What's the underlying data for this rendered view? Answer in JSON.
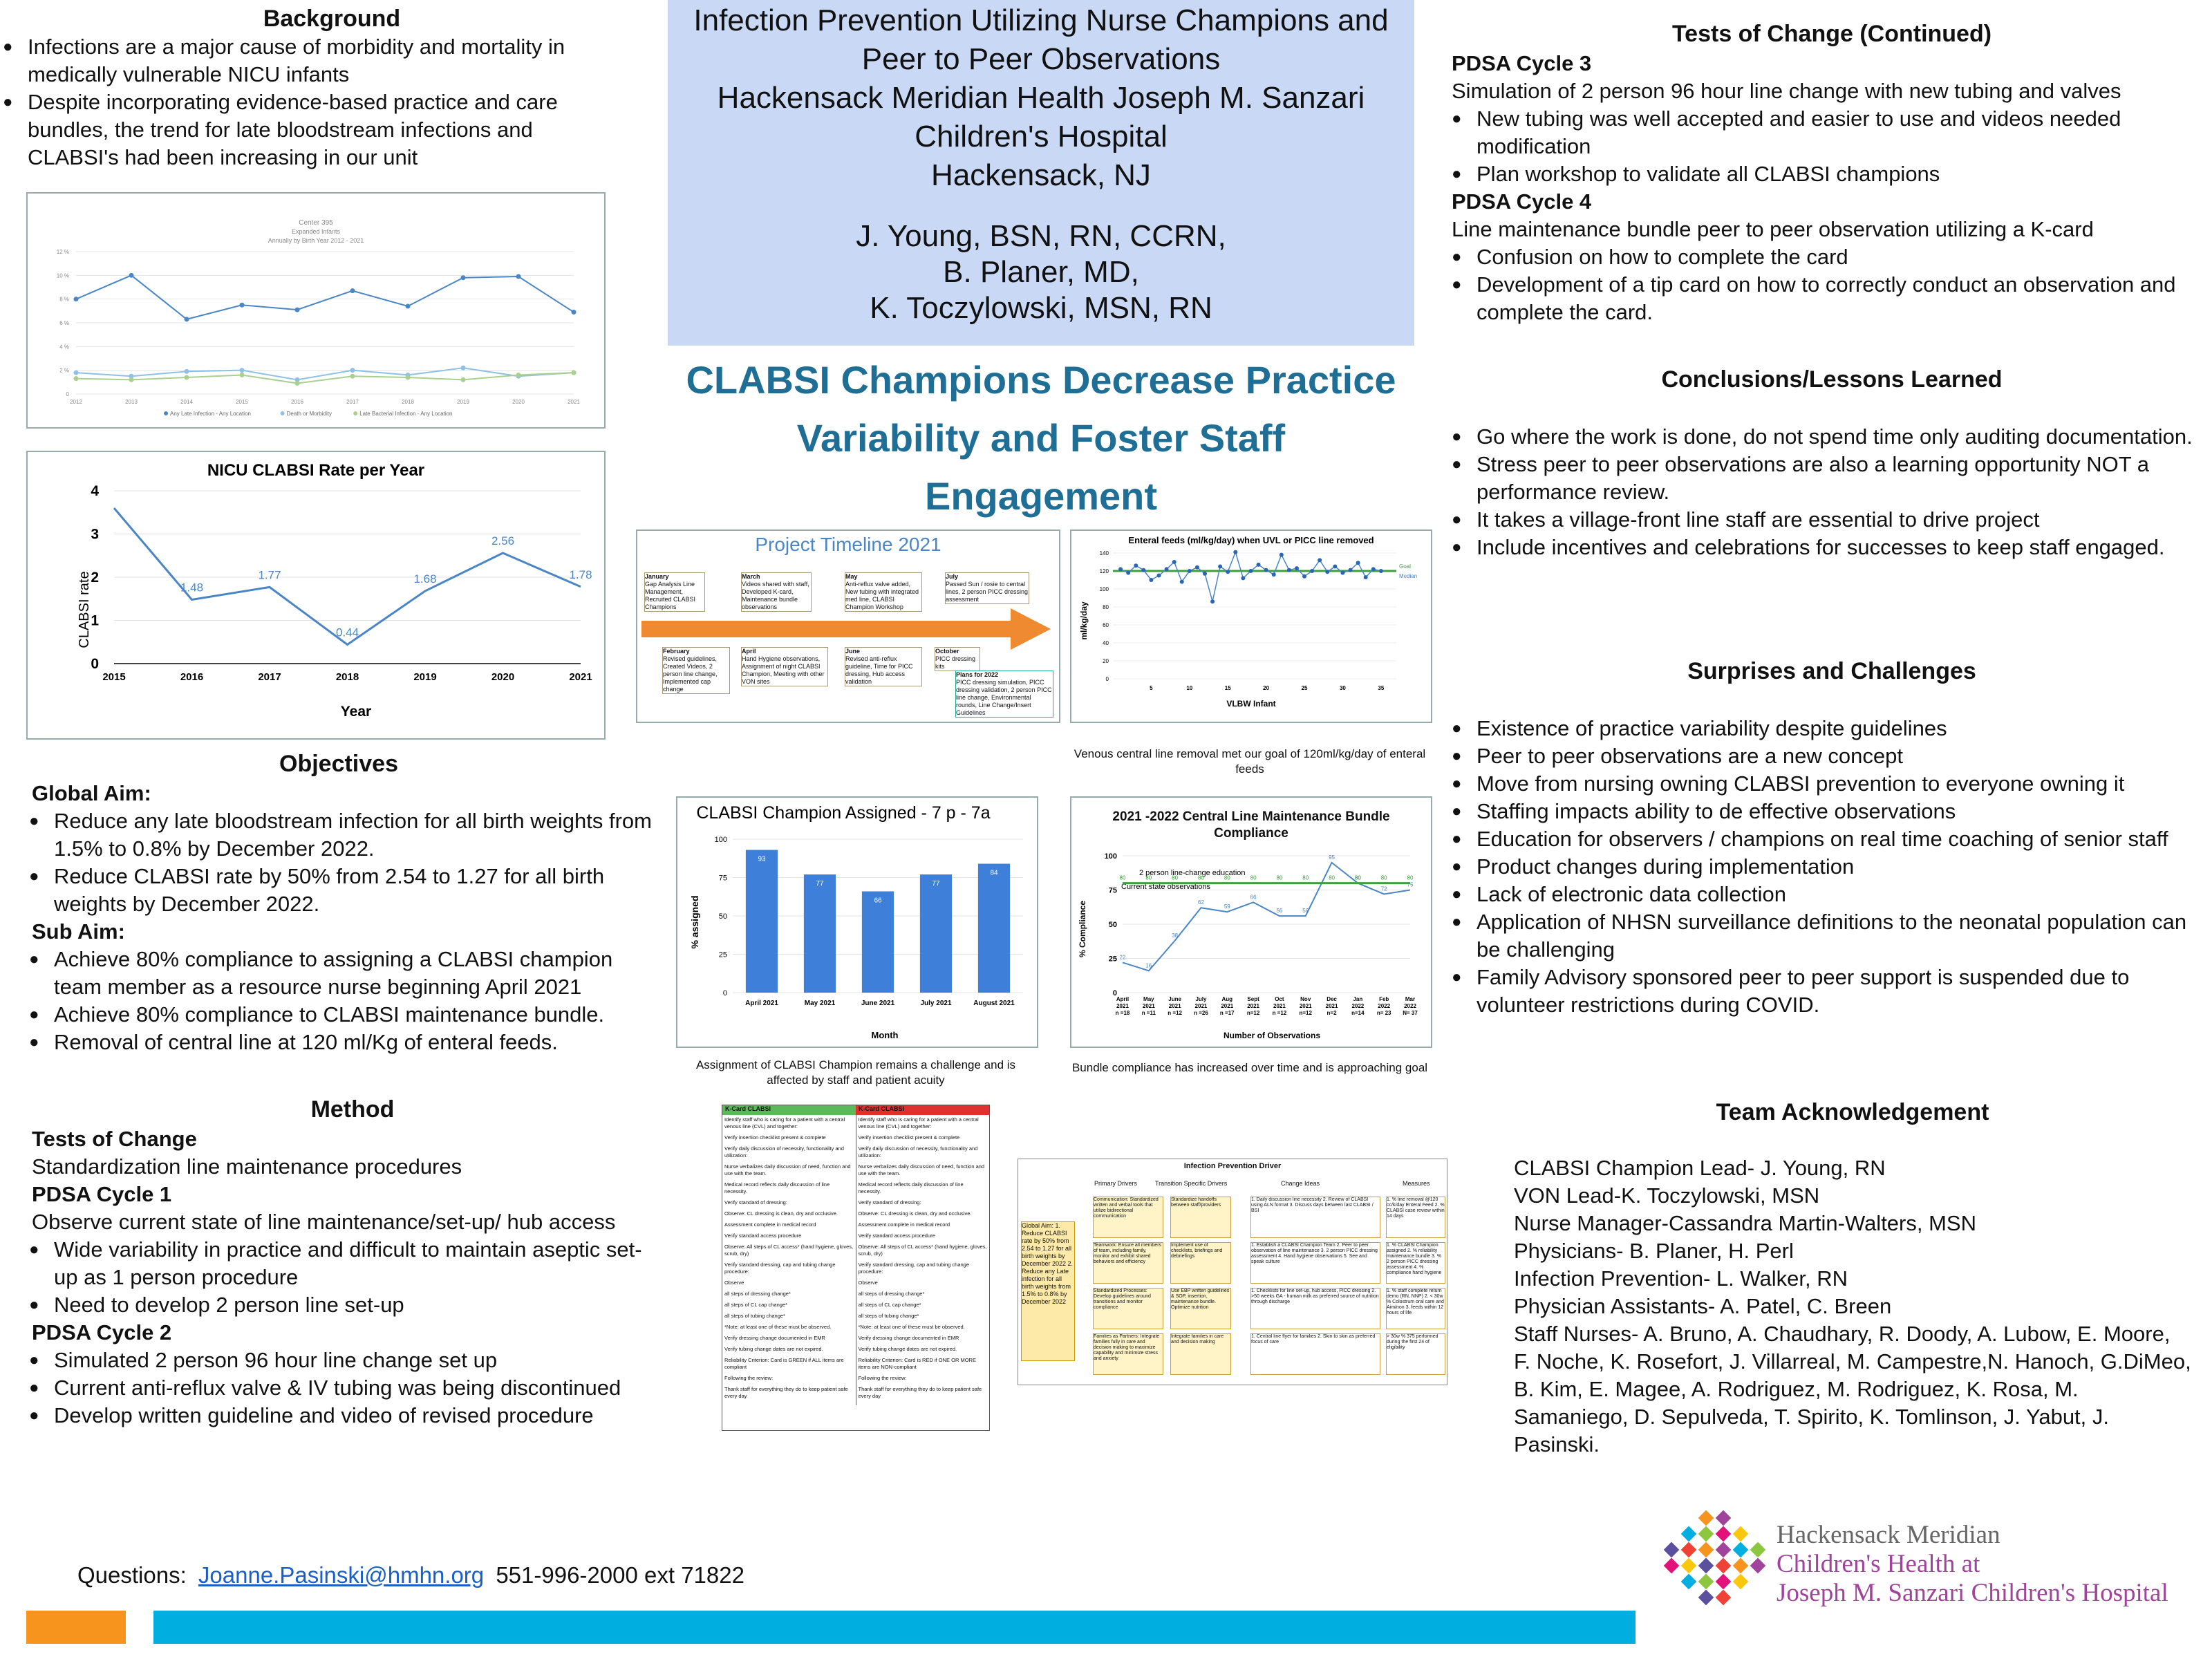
{
  "background": {
    "title": "Background",
    "bullets": [
      "Infections are a major cause of morbidity and mortality in medically vulnerable NICU infants",
      "Despite incorporating evidence-based practice and care bundles, the trend for late bloodstream infections and CLABSI's had been increasing in our unit"
    ]
  },
  "header": {
    "title_lines": [
      "Infection Prevention Utilizing Nurse Champions and",
      "Peer to Peer Observations",
      "Hackensack Meridian Health Joseph M. Sanzari",
      "Children's Hospital",
      "Hackensack, NJ"
    ],
    "authors": [
      "J. Young, BSN, RN, CCRN,",
      "B. Planer, MD,",
      "K. Toczylowski, MSN, RN"
    ],
    "bg_color": "#c9d8f5"
  },
  "banner": {
    "lines": [
      "CLABSI Champions Decrease Practice",
      "Variability and Foster Staff",
      "Engagement"
    ],
    "color": "#1f6e96"
  },
  "chart_data": [
    {
      "type": "line",
      "title": "Center 395",
      "subtitle": "Expanded Infants",
      "subtitle2": "Annually by Birth Year 2012 - 2021",
      "categories": [
        "2012",
        "2013",
        "2014",
        "2015",
        "2016",
        "2017",
        "2018",
        "2019",
        "2020",
        "2021"
      ],
      "yticks": [
        "0",
        "2 %",
        "4 %",
        "6 %",
        "8 %",
        "10 %",
        "12 %"
      ],
      "ylim": [
        0,
        12
      ],
      "series": [
        {
          "name": "Any Late Infection - Any Location",
          "values": [
            8.0,
            10.0,
            6.3,
            7.5,
            7.1,
            8.7,
            7.4,
            9.8,
            9.9,
            6.9
          ],
          "color": "#4a86c5"
        },
        {
          "name": "Death or Morbidity",
          "values": [
            1.8,
            1.5,
            1.9,
            2.0,
            1.2,
            2.0,
            1.6,
            2.2,
            1.5,
            1.8
          ],
          "color": "#8fc1e6"
        },
        {
          "name": "Late Bacterial Infection - Any Location",
          "values": [
            1.3,
            1.2,
            1.4,
            1.6,
            0.9,
            1.5,
            1.4,
            1.2,
            1.6,
            1.8
          ],
          "color": "#a9d08e"
        }
      ],
      "legend_position": "bottom"
    },
    {
      "type": "line",
      "title": "NICU CLABSI Rate per Year",
      "xlabel": "Year",
      "ylabel": "CLABSI rate",
      "categories": [
        "2015",
        "2016",
        "2017",
        "2018",
        "2019",
        "2020",
        "2021"
      ],
      "values": [
        3.6,
        1.48,
        1.77,
        0.44,
        1.68,
        2.56,
        1.78
      ],
      "data_labels": [
        "",
        "1.48",
        "1.77",
        "0.44",
        "1.68",
        "2.56",
        "1.78"
      ],
      "yticks": [
        "0",
        "1",
        "2",
        "3",
        "4"
      ],
      "ylim": [
        0,
        4
      ],
      "grid": true
    },
    {
      "type": "scatter",
      "title": "Enteral feeds (ml/kg/day) when UVL or PICC line removed",
      "xlabel": "VLBW Infant",
      "ylabel": "ml/kg/day",
      "xticks": [
        "5",
        "10",
        "15",
        "20",
        "25",
        "30",
        "35"
      ],
      "yticks": [
        "0",
        "20",
        "40",
        "60",
        "80",
        "100",
        "120",
        "140"
      ],
      "ylim": [
        0,
        140
      ],
      "xlim": [
        0,
        37
      ],
      "goal": 120,
      "goal_label": "Goal",
      "median_label": "Median",
      "values": [
        122,
        118,
        126,
        121,
        110,
        115,
        122,
        130,
        108,
        120,
        124,
        117,
        86,
        125,
        119,
        141,
        112,
        120,
        127,
        121,
        116,
        138,
        121,
        123,
        114,
        120,
        132,
        119,
        125,
        118,
        121,
        129,
        113,
        122,
        120
      ]
    },
    {
      "type": "bar",
      "title": "CLABSI Champion Assigned - 7 p - 7a",
      "xlabel": "Month",
      "ylabel": "% assigned",
      "categories": [
        "April 2021",
        "May 2021",
        "June 2021",
        "July 2021",
        "August 2021"
      ],
      "values": [
        93,
        77,
        66,
        77,
        84
      ],
      "yticks": [
        "0",
        "25",
        "50",
        "75",
        "100"
      ],
      "ylim": [
        0,
        100
      ],
      "color": "#3d7fd9"
    },
    {
      "type": "line",
      "title": "2021 -2022 Central Line Maintenance Bundle Compliance",
      "xlabel": "Number of Observations",
      "ylabel": "% Compliance",
      "categories": [
        "April 2021 n =18",
        "May 2021 n =11",
        "June 2021 n =12",
        "July 2021 n =26",
        "Aug 2021 n =17",
        "Sept 2021 n=12",
        "Oct 2021 n =12",
        "Nov 2021 n=12",
        "Dec 2021 n=2",
        "Jan 2022 n=14",
        "Feb 2022 n= 23",
        "Mar 2022 N= 37"
      ],
      "series": [
        {
          "name": "Compliance",
          "values": [
            22,
            16,
            38,
            62,
            59,
            66,
            56,
            56,
            95,
            80,
            72,
            75
          ],
          "color": "#4a86c5"
        },
        {
          "name": "Goal",
          "values": [
            80,
            80,
            80,
            80,
            80,
            80,
            80,
            80,
            80,
            80,
            80,
            80
          ],
          "color": "#3ca03c"
        }
      ],
      "annotations": [
        "2 person line-change education",
        "Current state observations"
      ],
      "yticks": [
        "0",
        "25",
        "50",
        "75",
        "100"
      ],
      "ylim": [
        0,
        100
      ]
    }
  ],
  "captions": {
    "enteral": "Venous central line removal met our goal of 120ml/kg/day of enteral feeds",
    "champion": "Assignment of CLABSI Champion remains a challenge and is affected by staff and patient acuity",
    "bundle": "Bundle compliance has increased over time and is approaching goal"
  },
  "timeline": {
    "title": "Project Timeline 2021",
    "above": [
      {
        "month": "January",
        "text": "Gap Analysis Line Management, Recruited CLABSI Champions"
      },
      {
        "month": "March",
        "text": "Videos shared with staff, Developed K-card, Maintenance bundle observations"
      },
      {
        "month": "May",
        "text": "Anti-reflux valve added, New tubing with integrated med line, CLABSI Champion Workshop"
      },
      {
        "month": "July",
        "text": "Passed Sun / rosie to central lines, 2 person PICC dressing assessment"
      }
    ],
    "below": [
      {
        "month": "February",
        "text": "Revised guidelines, Created Videos, 2 person line change, Implemented cap change"
      },
      {
        "month": "April",
        "text": "Hand Hygiene observations, Assignment of night CLABSI Champion, Meeting with other VON sites"
      },
      {
        "month": "June",
        "text": "Revised anti-reflux guideline, Time for PICC dressing, Hub access validation"
      },
      {
        "month": "October",
        "text": "PICC dressing kits"
      }
    ],
    "plans_title": "Plans for 2022",
    "plans": "PICC dressing simulation, PICC dressing validation, 2 person PICC line change, Environmental rounds, Line Change/Insert Guidelines"
  },
  "kcard": {
    "header_left": "K-Card CLABSI",
    "header_right": "K-Card CLABSI",
    "lines": [
      "Identify staff who is caring for a patient with a central venous line (CVL) and together:",
      "Verify insertion checklist present & complete",
      "Verify daily discussion of necessity, functionality and utilization:",
      "Nurse verbalizes daily discussion of need, function and use with the team.",
      "Medical record reflects daily discussion of line necessity.",
      "Verify standard of dressing:",
      "Observe: CL dressing is clean, dry and occlusive.",
      "Assessment complete in medical record",
      "Verify standard access procedure",
      "Observe: All steps of CL access* (hand hygiene, gloves, scrub, dry)",
      "Verify standard dressing, cap and tubing change procedure:",
      "Observe",
      "all steps of dressing change*",
      "all steps of CL cap change*",
      "all steps of tubing change*",
      "*Note: at least one of these must be observed.",
      "Verify dressing change documented in EMR",
      "Verify tubing change dates are not expired.",
      "Reliability Criterion: Card is GREEN if ALL items are compliant",
      "Following the review:",
      "Thank staff for everything they do to keep patient safe every day"
    ],
    "footer_left": "Reliability Criterion: Card is GREEN if ALL items are compliant",
    "footer_right": "Reliability Criterion: Card is RED if ONE OR MORE items are NON-compliant"
  },
  "driver": {
    "title": "Infection Prevention Driver",
    "col_primary": "Primary Drivers",
    "col_secondary": "Transition Specific Drivers",
    "col_change": "Change Ideas",
    "col_measures": "Measures",
    "global_aim": "Global Aim: 1. Reduce CLABSI rate by 50% from 2.54 to 1.27 for all birth weights by December 2022 2. Reduce any Late infection for all birth weights from 1.5% to 0.8% by December 2022",
    "primary": [
      "Communication: Standardized written and verbal tools that utilize bidirectional communication",
      "Teamwork: Ensure all members of team, including family, monitor and exhibit shared behaviors and efficiency",
      "Standardized Processes: Develop guidelines around transitions and monitor compliance",
      "Families as Partners: Integrate families fully in care and decision making to maximize capability and minimize stress and anxiety"
    ],
    "secondary": [
      "Standardize handoffs between staff/providers",
      "Implement use of checklists, briefings and debriefings",
      "Use EBP written guidelines & SOP, insertion, maintenance bundle. Optimize nutrition",
      "Integrate families in care and decision making"
    ],
    "change": [
      "1. Daily discussion line necessity 2. Review of CLABSI using ALN format 3. Discuss days between last CLABSI / BSI",
      "1. Establish a CLABSI Champion Team 2. Peer to peer observation of line maintenance 3. 2 person PICC dressing assessment 4. Hand hygiene observations 5. See and speak culture",
      "1. Checklists for line set-up, hub access, PICC dressing 2. >50 weeks GA - human milk as preferred source of nutrition through discharge",
      "1. Central line flyer for families 2. Skin to skin as preferred focus of care"
    ],
    "measures": [
      "1. % line removal @120 cc/k/day Enteral Feed 2. % CLABSI case review within 14 days",
      "1. % CLABSI Champion assigned 2. % reliability maintenance bundle 3. % 2 person PICC dressing assessment 4. % compliance hand hygiene",
      "1. % staff complete return demo (RN, NNP) 2. < 30w % Colostrum oral care and Aim/non 3. feeds within 12 hours of life",
      "> 30w % 375 performed during the first 24 of eligibility"
    ]
  },
  "right": {
    "tests_title": "Tests of Change  (Continued)",
    "pdsa3_title": "PDSA Cycle 3",
    "pdsa3_text": "Simulation of 2 person 96 hour line change with new tubing and valves",
    "pdsa3_bullets": [
      "New tubing was well accepted and easier to use and videos needed modification",
      "Plan workshop to validate all CLABSI champions"
    ],
    "pdsa4_title": "PDSA Cycle 4",
    "pdsa4_text": "Line maintenance bundle peer to peer observation utilizing a K-card",
    "pdsa4_bullets": [
      "Confusion on how to complete the card",
      "Development of a tip card on how to correctly conduct an observation and complete the card."
    ],
    "conclusions_title": "Conclusions/Lessons Learned",
    "conclusions": [
      "Go where the work is done, do not spend time only auditing documentation.",
      "Stress peer to peer observations are also a learning opportunity NOT a performance review.",
      "It takes a village-front line staff are essential to drive project",
      "Include incentives and celebrations for successes to keep staff engaged."
    ],
    "surprises_title": "Surprises and Challenges",
    "surprises": [
      "Existence of practice variability despite guidelines",
      "Peer to peer observations are a new concept",
      "Move from nursing owning CLABSI prevention to everyone owning it",
      "Staffing impacts ability to de effective observations",
      "Education for observers / champions on real time coaching of senior staff",
      "Product changes during implementation",
      "Lack of electronic data collection",
      "Application of NHSN surveillance definitions to the neonatal population can be challenging",
      "Family Advisory sponsored peer to peer support is suspended due to volunteer restrictions during COVID."
    ],
    "team_title": "Team Acknowledgement",
    "team_lines": [
      "CLABSI Champion Lead- J. Young, RN",
      "VON Lead-K. Toczylowski,  MSN",
      "Nurse Manager-Cassandra Martin-Walters, MSN",
      "Physicians- B.  Planer, H. Perl",
      "Infection Prevention- L. Walker, RN",
      "Physician Assistants- A. Patel, C. Breen",
      "Staff Nurses- A. Bruno, A. Chaudhary, R. Doody, A. Lubow, E. Moore, F. Noche, K.  Rosefort, J. Villarreal, M. Campestre,N. Hanoch, G.DiMeo, B. Kim, E. Magee, A. Rodriguez, M. Rodriguez, K. Rosa, M. Samaniego, D. Sepulveda, T. Spirito, K. Tomlinson, J. Yabut, J. Pasinski."
    ]
  },
  "objectives": {
    "title": "Objectives",
    "global_title": "Global Aim:",
    "global": [
      "Reduce any late bloodstream infection for all birth weights from 1.5% to 0.8% by December 2022.",
      "Reduce CLABSI rate by 50% from 2.54 to 1.27 for all birth weights by December 2022."
    ],
    "sub_title": "Sub Aim:",
    "sub": [
      "Achieve 80% compliance to assigning a CLABSI champion team member as a resource nurse beginning April 2021",
      "Achieve 80% compliance to CLABSI maintenance bundle.",
      "Removal of central line at 120 ml/Kg of enteral feeds."
    ]
  },
  "method": {
    "title": "Method",
    "tests_title": "Tests of Change",
    "tests_text": "Standardization line maintenance procedures",
    "pdsa1_title": "PDSA Cycle 1",
    "pdsa1_text": "Observe current state of line maintenance/set-up/ hub access",
    "pdsa1_bullets": [
      "Wide variability in practice and difficult to maintain aseptic set-up as 1 person procedure",
      "Need to develop 2 person line set-up"
    ],
    "pdsa2_title": "PDSA Cycle 2",
    "pdsa2_bullets": [
      "Simulated 2 person 96 hour line change set up",
      "Current anti-reflux valve & IV tubing was being discontinued",
      "Develop written guideline and video of revised procedure"
    ]
  },
  "footer": {
    "questions_label": "Questions:",
    "email": "Joanne.Pasinski@hmhn.org",
    "phone": "551-996-2000 ext 71822",
    "logo_line1": "Hackensack Meridian",
    "logo_line2": "Children's Health at",
    "logo_line3": "Joseph M. Sanzari Children's Hospital",
    "orange": "#f7941d",
    "blue": "#00aee0"
  }
}
